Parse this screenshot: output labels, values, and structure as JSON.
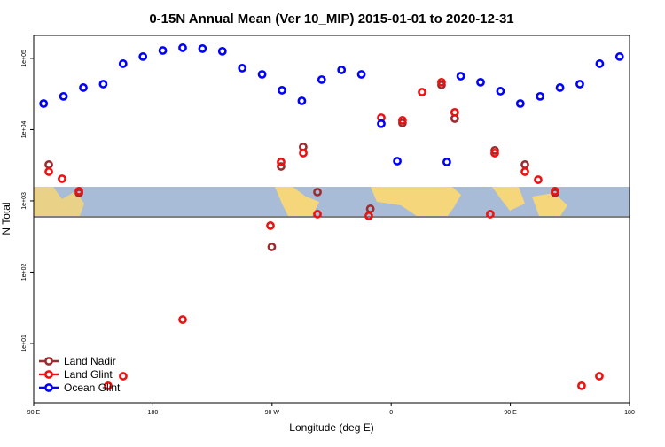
{
  "chart_data": {
    "type": "scatter",
    "title": "0-15N Annual Mean (Ver 10_MIP)   2015-01-01 to 2020-12-31",
    "x_label": "Longitude (deg E)",
    "y_label": "N Total",
    "log_y": true,
    "legend": "bottomleft",
    "xlim": [
      90,
      540
    ],
    "ylim": [
      1.47,
      210000
    ],
    "xticks": [
      {
        "value": 90,
        "label": "90 E"
      },
      {
        "value": 180,
        "label": "180"
      },
      {
        "value": 270,
        "label": "90 W"
      },
      {
        "value": 360,
        "label": "0"
      },
      {
        "value": 450,
        "label": "90 E"
      },
      {
        "value": 540,
        "label": "180"
      }
    ],
    "yticks": [
      {
        "value": 10,
        "label": "1e+01"
      },
      {
        "value": 100,
        "label": "1e+02"
      },
      {
        "value": 1000,
        "label": "1e+03"
      },
      {
        "value": 10000,
        "label": "1e+04"
      },
      {
        "value": 100000,
        "label": "1e+05"
      }
    ],
    "series": [
      {
        "name": "Land Nadir",
        "color": "#9b2d30",
        "x": [
          101.4,
          124.2,
          269.8,
          276.8,
          293.5,
          304.3,
          344.2,
          368.5,
          398,
          408,
          438.2,
          461,
          483.7
        ],
        "values": [
          3230,
          1290,
          226,
          3050,
          5730,
          1330,
          773,
          12400,
          42400,
          14300,
          5110,
          3230,
          1290
        ]
      },
      {
        "name": "Land Glint",
        "color": "#ee1111",
        "x": [
          101.4,
          111.4,
          124.2,
          146.2,
          157.6,
          202.5,
          268.8,
          276.8,
          293.6,
          304.3,
          343.1,
          352.5,
          368.5,
          383.3,
          398,
          408,
          434.8,
          438.2,
          461,
          471,
          483.7,
          503.8,
          517.2
        ],
        "values": [
          2570,
          2040,
          1370,
          2.54,
          3.47,
          21.6,
          449,
          3520,
          4690,
          651,
          615,
          14700,
          13500,
          33700,
          46300,
          17500,
          651,
          4690,
          2570,
          1980,
          1370,
          2.54,
          3.47
        ]
      },
      {
        "name": "Ocean Glint",
        "color": "#0000ff",
        "x": [
          97.5,
          112.5,
          127.5,
          142.5,
          157.5,
          172.5,
          187.5,
          202.5,
          217.5,
          232.5,
          247.5,
          262.5,
          277.5,
          292.5,
          307.5,
          322.5,
          337.5,
          352.5,
          364.6,
          402,
          412.5,
          427.5,
          442.5,
          457.5,
          472.5,
          487.5,
          502.5,
          517.5,
          532.5
        ],
        "values": [
          23200,
          29300,
          38900,
          43600,
          84200,
          106000,
          129000,
          141000,
          137000,
          126000,
          73000,
          59700,
          35700,
          25300,
          50300,
          68900,
          59700,
          12100,
          3620,
          3520,
          56300,
          46300,
          34700,
          23200,
          29300,
          38900,
          43600,
          84200,
          106000
        ]
      }
    ]
  }
}
